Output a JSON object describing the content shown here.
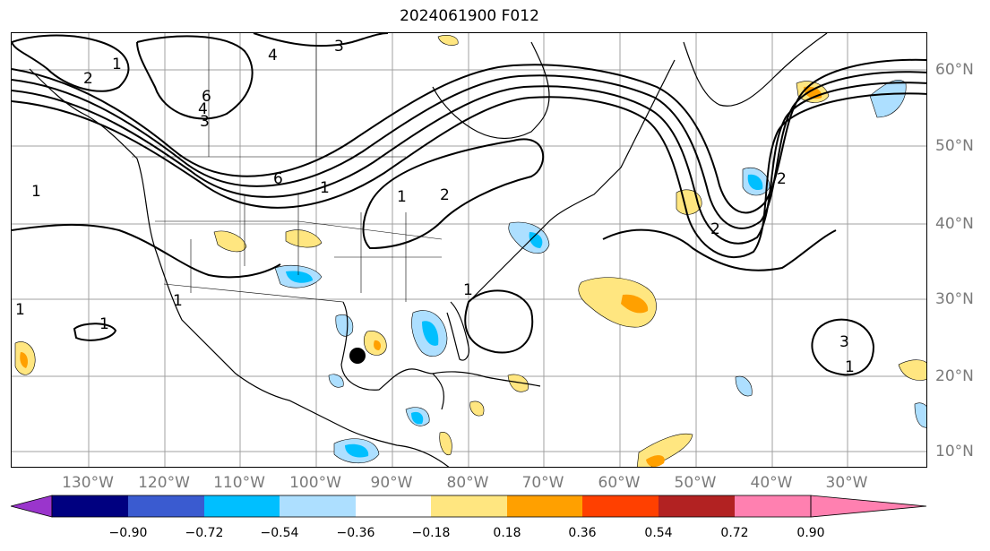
{
  "title": "2024061900 F012",
  "lon_labels": [
    "130°W",
    "120°W",
    "110°W",
    "100°W",
    "90°W",
    "80°W",
    "70°W",
    "60°W",
    "50°W",
    "40°W",
    "30°W"
  ],
  "lat_labels": [
    "60°N",
    "50°N",
    "40°N",
    "30°N",
    "20°N",
    "10°N"
  ],
  "contour_labels": [
    "1",
    "2",
    "3",
    "4",
    "6",
    "1",
    "2",
    "3",
    "4",
    "6",
    "1",
    "2",
    "1",
    "1",
    "3",
    "1",
    "2",
    "1",
    "1",
    "1"
  ],
  "colorbar": {
    "colors": [
      "#9a35cc",
      "#000080",
      "#3a5bd0",
      "#00bfff",
      "#addfff",
      "#ffffff",
      "#ffe680",
      "#ffa000",
      "#ff4000",
      "#b22222",
      "#ff80b0"
    ],
    "ticks": [
      "−0.90",
      "−0.72",
      "−0.54",
      "−0.36",
      "−0.18",
      "0.18",
      "0.36",
      "0.54",
      "0.72",
      "0.90"
    ]
  }
}
